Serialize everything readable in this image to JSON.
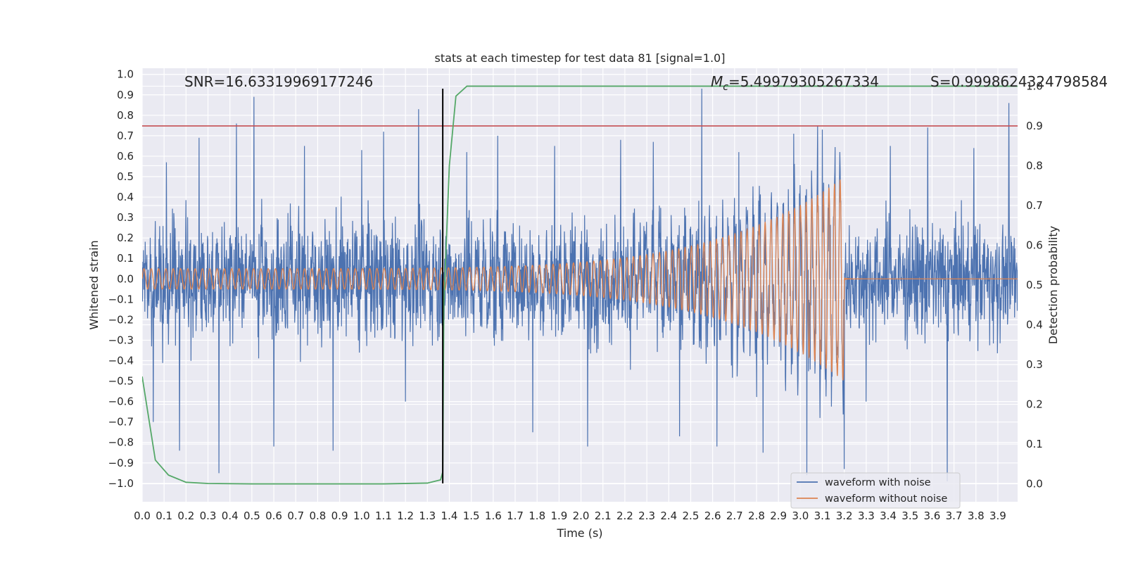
{
  "chart_data": {
    "type": "line",
    "title": "stats at each timestep for test data 81 [signal=1.0]",
    "xlabel": "Time (s)",
    "ylabel": "Whitened strain",
    "y2label": "Detection probability",
    "xlim": [
      0.0,
      3.99
    ],
    "ylim": [
      -1.09,
      1.03
    ],
    "y2lim": [
      -0.045,
      1.045
    ],
    "x_ticks": [
      0.0,
      0.1,
      0.2,
      0.3,
      0.4,
      0.5,
      0.6,
      0.7,
      0.8,
      0.9,
      1.0,
      1.1,
      1.2,
      1.3,
      1.4,
      1.5,
      1.6,
      1.7,
      1.8,
      1.9,
      2.0,
      2.1,
      2.2,
      2.3,
      2.4,
      2.5,
      2.6,
      2.7,
      2.8,
      2.9,
      3.0,
      3.1,
      3.2,
      3.3,
      3.4,
      3.5,
      3.6,
      3.7,
      3.8,
      3.9
    ],
    "y_ticks": [
      1.0,
      0.9,
      0.8,
      0.7,
      0.6,
      0.5,
      0.4,
      0.3,
      0.2,
      0.1,
      0.0,
      -0.1,
      -0.2,
      -0.3,
      -0.4,
      -0.5,
      -0.6,
      -0.7,
      -0.8,
      -0.9,
      -1.0
    ],
    "y_tick_labels": [
      "1.0",
      "0.9",
      "0.8",
      "0.7",
      "0.6",
      "0.5",
      "0.4",
      "0.3",
      "0.2",
      "0.1",
      "0.0",
      "−0.1",
      "−0.2",
      "−0.3",
      "−0.4",
      "−0.5",
      "−0.6",
      "−0.7",
      "−0.8",
      "−0.9",
      "−1.0"
    ],
    "y2_ticks": [
      0.0,
      0.1,
      0.2,
      0.3,
      0.4,
      0.5,
      0.6,
      0.7,
      0.8,
      0.9,
      1.0
    ],
    "grid": true,
    "legend_placement": "lower-right",
    "annotations": {
      "snr": "SNR=16.63319969177246",
      "mc_symbol": "M",
      "mc_sub": "c",
      "mc_value": "=5.49979305267334",
      "s": "S=0.9998624324798584"
    },
    "threshold": {
      "value": 0.9,
      "axis": "right",
      "color": "#c44e52"
    },
    "event_marker": {
      "x": 1.37,
      "ymin": -1.0,
      "ymax": 0.93,
      "color": "#000000"
    },
    "series": [
      {
        "name": "waveform with noise",
        "color": "#4c72b0",
        "note_generated": true,
        "spikes": [
          [
            0.05,
            -0.7
          ],
          [
            0.11,
            0.57
          ],
          [
            0.17,
            -0.84
          ],
          [
            0.26,
            0.69
          ],
          [
            0.35,
            -0.95
          ],
          [
            0.43,
            0.76
          ],
          [
            0.51,
            0.89
          ],
          [
            0.6,
            -0.82
          ],
          [
            0.74,
            0.65
          ],
          [
            0.87,
            -0.84
          ],
          [
            1.0,
            0.63
          ],
          [
            1.1,
            0.72
          ],
          [
            1.2,
            -0.6
          ],
          [
            1.26,
            0.83
          ],
          [
            1.48,
            0.62
          ],
          [
            1.62,
            0.7
          ],
          [
            1.78,
            -0.75
          ],
          [
            1.88,
            0.65
          ],
          [
            2.03,
            -0.82
          ],
          [
            2.18,
            0.68
          ],
          [
            2.33,
            0.67
          ],
          [
            2.45,
            -0.77
          ],
          [
            2.55,
            0.93
          ],
          [
            2.62,
            -0.82
          ],
          [
            2.72,
            0.62
          ],
          [
            2.83,
            -0.85
          ],
          [
            2.97,
            0.71
          ],
          [
            3.03,
            -0.96
          ],
          [
            3.1,
            0.73
          ],
          [
            3.2,
            -0.93
          ],
          [
            3.3,
            -0.6
          ],
          [
            3.41,
            0.65
          ],
          [
            3.58,
            0.74
          ],
          [
            3.67,
            -0.99
          ],
          [
            3.79,
            0.64
          ],
          [
            3.95,
            0.86
          ]
        ]
      },
      {
        "name": "waveform without noise",
        "color": "#dd8452",
        "merger_time": 3.2,
        "amp_start": 0.05,
        "amp_peak": 0.5,
        "f_start": 30,
        "tau": 3.35
      },
      {
        "name": "detection probability",
        "color": "#55a868",
        "axis": "right",
        "x": [
          0.0,
          0.06,
          0.12,
          0.2,
          0.3,
          0.5,
          0.8,
          1.1,
          1.3,
          1.36,
          1.37,
          1.375,
          1.4,
          1.43,
          1.48,
          1.5,
          3.99
        ],
        "values": [
          0.27,
          0.06,
          0.022,
          0.004,
          0.001,
          0.0,
          0.0,
          0.0,
          0.002,
          0.01,
          0.03,
          0.45,
          0.8,
          0.975,
          1.0,
          1.0,
          1.0
        ]
      }
    ]
  }
}
